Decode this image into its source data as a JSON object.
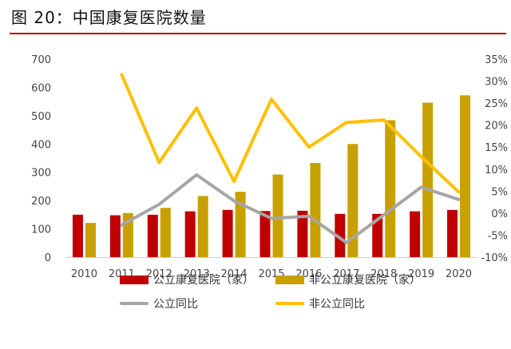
{
  "figure_title": "图 20：中国康复医院数量",
  "colors": {
    "public_bar": "#c00000",
    "private_bar": "#c8a000",
    "public_line": "#a6a6a6",
    "private_line": "#ffc000",
    "title_rule": "#b40000"
  },
  "chart_data": {
    "type": "bar",
    "categories": [
      "2010",
      "2011",
      "2012",
      "2013",
      "2014",
      "2015",
      "2016",
      "2017",
      "2018",
      "2019",
      "2020"
    ],
    "series": [
      {
        "name": "公立康复医院（家）",
        "type": "bar",
        "axis": "left",
        "values": [
          150,
          148,
          150,
          162,
          167,
          163,
          164,
          153,
          153,
          162,
          167
        ]
      },
      {
        "name": "非公立康复医院（家）",
        "type": "bar",
        "axis": "left",
        "values": [
          121,
          156,
          174,
          216,
          231,
          292,
          333,
          400,
          484,
          546,
          572
        ]
      },
      {
        "name": "公立同比",
        "type": "line",
        "axis": "right",
        "values": [
          null,
          -2.7,
          2.0,
          8.7,
          2.8,
          -1.2,
          -0.7,
          -6.7,
          -0.4,
          5.9,
          3.1
        ]
      },
      {
        "name": "非公立同比",
        "type": "line",
        "axis": "right",
        "values": [
          null,
          31.5,
          11.5,
          23.9,
          7.2,
          25.9,
          15.0,
          20.6,
          21.2,
          12.8,
          4.8
        ]
      }
    ],
    "ylim": [
      0,
      700
    ],
    "yticks": [
      "0",
      "100",
      "200",
      "300",
      "400",
      "500",
      "600",
      "700"
    ],
    "y2lim": [
      -10,
      35
    ],
    "y2ticks": [
      "-10%",
      "-5%",
      "0%",
      "5%",
      "10%",
      "15%",
      "20%",
      "25%",
      "30%",
      "35%"
    ],
    "grid": false,
    "legend_position": "bottom"
  }
}
